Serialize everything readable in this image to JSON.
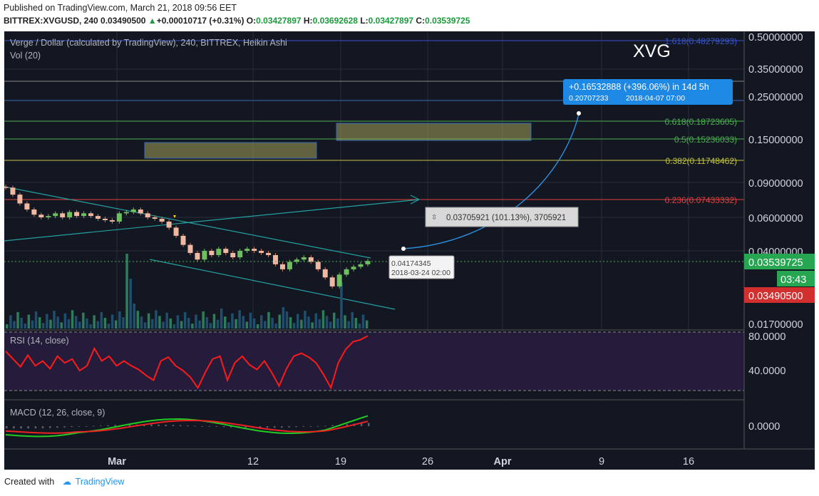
{
  "header": {
    "published": "Published on TradingView.com, March 21, 2018 09:56 EET",
    "symbol": "BITTREX:XVGUSD, 240",
    "last": "0.03490500",
    "change": "+0.00010717 (+0.31%)",
    "o_label": "O:",
    "o": "0.03427897",
    "h_label": "H:",
    "h": "0.03692628",
    "l_label": "L:",
    "l": "0.03427897",
    "c_label": "C:",
    "c": "0.03539725",
    "up_glyph": "▲"
  },
  "chart": {
    "title": "Verge / Dollar (calculated by TradingView), 240, BITTREX, Heikin Ashi",
    "volume_label": "Vol (20)",
    "watermark": "XVG",
    "price_labels": [
      "0.50000000",
      "0.35000000",
      "0.25000000",
      "0.15000000",
      "0.09000000",
      "0.06000000",
      "0.04000000",
      "0.01700000"
    ],
    "current_price": "0.03539725",
    "countdown": "03:43",
    "last_price": "0.03490500",
    "fib": [
      {
        "label": "1.618(0.48279293)",
        "color": "#3a53c8"
      },
      {
        "label": "0.618(0.18723605)",
        "color": "#4caf50"
      },
      {
        "label": "0.5(0.15236033)",
        "color": "#4caf50"
      },
      {
        "label": "0.382(0.11748462)",
        "color": "#c0c040"
      },
      {
        "label": "0.236(0.07433332)",
        "color": "#e04040"
      }
    ],
    "projection_box": {
      "line1": "+0.16532888 (+396.06%) in 14d 5h",
      "line2": "0.20707233",
      "line3": "2018-04-07  07:00"
    },
    "measure_box": "0.03705921 (101.13%), 3705921",
    "point_label": {
      "line1": "0.04174345",
      "line2": "2018-03-24 02:00"
    },
    "x_labels": [
      "Mar",
      "12",
      "19",
      "26",
      "Apr",
      "9",
      "16"
    ],
    "rsi_label": "RSI (14, close)",
    "rsi_levels": [
      "80.0000",
      "40.0000"
    ],
    "macd_label": "MACD (12, 26, close, 9)",
    "macd_level": "0.0000"
  },
  "chart_data": {
    "type": "line",
    "series": [
      {
        "values": [
          0.086,
          0.079,
          0.071,
          0.066,
          0.062,
          0.06,
          0.061,
          0.063,
          0.06,
          0.064,
          0.061,
          0.063,
          0.061,
          0.059,
          0.058,
          0.057,
          0.063,
          0.064,
          0.066,
          0.063,
          0.06,
          0.059,
          0.057,
          0.053,
          0.048,
          0.043,
          0.039,
          0.036,
          0.04,
          0.038,
          0.041,
          0.039,
          0.037,
          0.04,
          0.041,
          0.04,
          0.039,
          0.038,
          0.034,
          0.032,
          0.035,
          0.036,
          0.037,
          0.035,
          0.032,
          0.029,
          0.026,
          0.03,
          0.032,
          0.033,
          0.034,
          0.0354
        ]
      },
      {
        "name": "RSI (14, close)",
        "values": [
          60,
          52,
          44,
          56,
          45,
          50,
          42,
          55,
          48,
          52,
          40,
          45,
          63,
          50,
          55,
          45,
          50,
          45,
          41,
          35,
          30,
          50,
          54,
          45,
          40,
          33,
          22,
          38,
          52,
          55,
          30,
          48,
          55,
          46,
          41,
          50,
          38,
          24,
          42,
          55,
          58,
          54,
          48,
          36,
          22,
          48,
          62,
          70,
          72,
          76
        ]
      }
    ]
  },
  "footer": {
    "created": "Created with",
    "brand": "TradingView"
  }
}
